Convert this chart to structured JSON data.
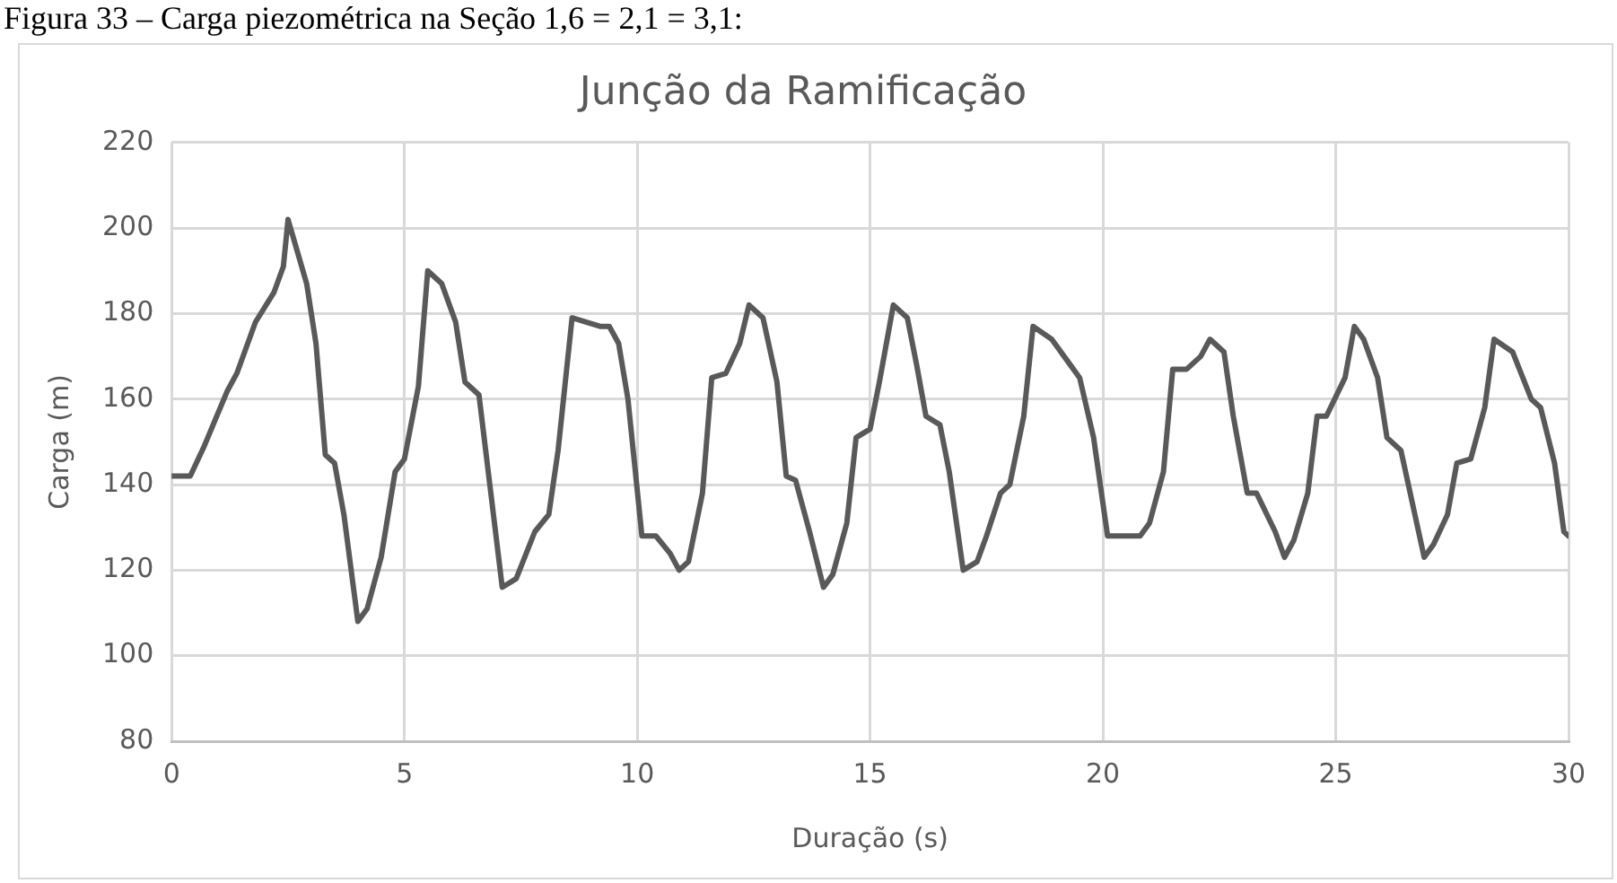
{
  "chart_data": {
    "type": "line",
    "title": "Junção da Ramificação",
    "xlabel": "Duração (s)",
    "ylabel": "Carga (m)",
    "annotations": [
      "Figura 33 – Carga piezométrica na Seção 1,6 = 2,1 = 3,1:"
    ],
    "series": [
      {
        "color": "#595959",
        "x": [
          0,
          0.4,
          0.7,
          1.2,
          1.4,
          1.8,
          2.2,
          2.4,
          2.5,
          2.9,
          3.1,
          3.3,
          3.5,
          3.7,
          4.0,
          4.2,
          4.5,
          4.8,
          5.0,
          5.3,
          5.5,
          5.8,
          6.1,
          6.3,
          6.6,
          6.8,
          7.1,
          7.4,
          7.8,
          8.1,
          8.3,
          8.6,
          9.2,
          9.4,
          9.6,
          9.8,
          10.1,
          10.4,
          10.7,
          10.9,
          11.1,
          11.4,
          11.6,
          11.9,
          12.2,
          12.4,
          12.7,
          13.0,
          13.2,
          13.4,
          13.7,
          14.0,
          14.2,
          14.5,
          14.7,
          15.0,
          15.2,
          15.5,
          15.8,
          16.0,
          16.2,
          16.5,
          16.7,
          17.0,
          17.3,
          17.5,
          17.8,
          18.0,
          18.3,
          18.5,
          18.9,
          19.3,
          19.5,
          19.8,
          20.1,
          20.4,
          20.8,
          21.0,
          21.3,
          21.5,
          21.8,
          22.1,
          22.3,
          22.6,
          22.8,
          23.1,
          23.3,
          23.7,
          23.9,
          24.1,
          24.4,
          24.6,
          24.8,
          25.2,
          25.4,
          25.6,
          25.9,
          26.1,
          26.4,
          26.6,
          26.9,
          27.1,
          27.4,
          27.6,
          27.9,
          28.2,
          28.4,
          28.8,
          29.2,
          29.4,
          29.7,
          29.9,
          30
        ],
        "values": [
          142,
          142,
          149,
          162,
          166,
          178,
          185,
          191,
          202,
          187,
          173,
          147,
          145,
          133,
          108,
          111,
          123,
          143,
          146,
          163,
          190,
          187,
          178,
          164,
          161,
          143,
          116,
          118,
          129,
          133,
          148,
          179,
          177,
          177,
          173,
          160,
          128,
          128,
          124,
          120,
          122,
          138,
          165,
          166,
          173,
          182,
          179,
          164,
          142,
          141,
          129,
          116,
          119,
          131,
          151,
          153,
          164,
          182,
          179,
          168,
          156,
          154,
          143,
          120,
          122,
          128,
          138,
          140,
          156,
          177,
          174,
          168,
          165,
          151,
          128,
          128,
          128,
          131,
          143,
          167,
          167,
          170,
          174,
          171,
          156,
          138,
          138,
          129,
          123,
          127,
          138,
          156,
          156,
          165,
          177,
          174,
          165,
          151,
          148,
          138,
          123,
          126,
          133,
          145,
          146,
          158,
          174,
          171,
          160,
          158,
          145,
          129,
          128
        ]
      }
    ],
    "xlim": [
      0,
      30
    ],
    "xticks": [
      0,
      5,
      10,
      15,
      20,
      25,
      30
    ],
    "ylim": [
      80,
      220
    ],
    "yticks": [
      80,
      100,
      120,
      140,
      160,
      180,
      200,
      220
    ],
    "grid": true,
    "marker": "none",
    "line_style": "solid"
  }
}
